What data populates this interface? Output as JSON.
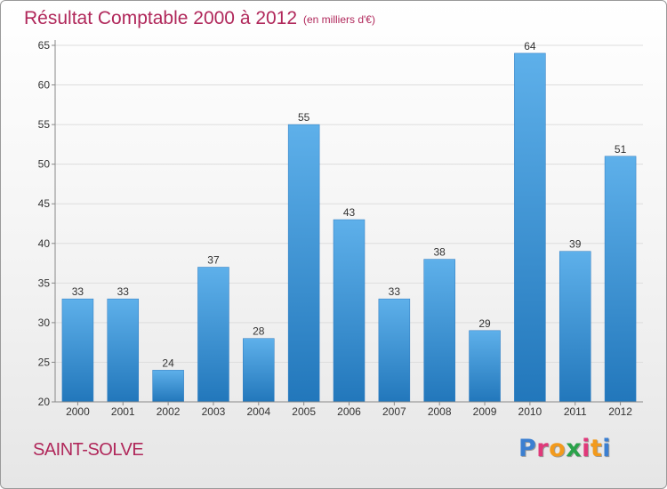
{
  "chart_data": {
    "type": "bar",
    "title": "Résultat Comptable 2000 à 2012",
    "subtitle": "(en milliers d'€)",
    "categories": [
      "2000",
      "2001",
      "2002",
      "2003",
      "2004",
      "2005",
      "2006",
      "2007",
      "2008",
      "2009",
      "2010",
      "2011",
      "2012"
    ],
    "values": [
      33,
      33,
      24,
      37,
      28,
      55,
      43,
      33,
      38,
      29,
      64,
      39,
      51
    ],
    "ylim": [
      20,
      65
    ],
    "yticks": [
      20,
      25,
      30,
      35,
      40,
      45,
      50,
      55,
      60,
      65
    ],
    "xlabel": "",
    "ylabel": "",
    "grid": true,
    "bar_color": "#3a8fd6"
  },
  "footer": {
    "place": "SAINT-SOLVE",
    "logo_letters": [
      "P",
      "r",
      "o",
      "x",
      "i",
      "t",
      "i"
    ],
    "logo_colors": [
      "#3b7fd1",
      "#e0397a",
      "#f29a1c",
      "#2aa24a",
      "#e0397a",
      "#f29a1c",
      "#3b7fd1"
    ]
  }
}
